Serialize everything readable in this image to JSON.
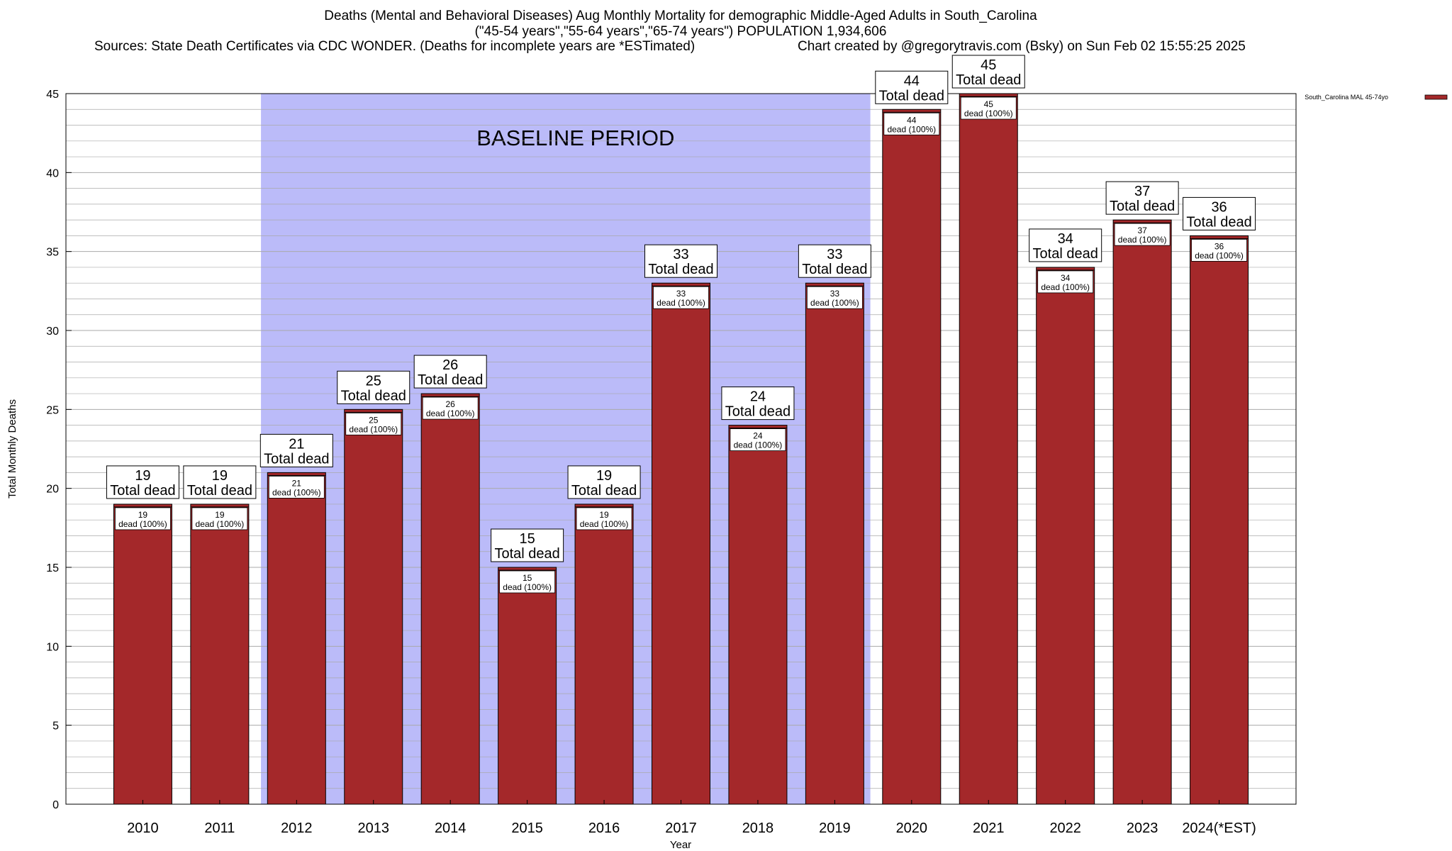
{
  "header": {
    "title_line1": "Deaths (Mental and Behavioral Diseases) Aug Monthly Mortality for demographic Middle-Aged Adults in South_Carolina",
    "title_line2": "(\"45-54 years\",\"55-64 years\",\"65-74 years\") POPULATION 1,934,606",
    "sources": "Sources: State Death Certificates via CDC WONDER. (Deaths for incomplete years are *ESTimated)",
    "credit": "Chart created by @gregorytravis.com (Bsky) on Sun Feb 02 15:55:25 2025"
  },
  "chart_data": {
    "type": "bar",
    "xlabel": "Year",
    "ylabel": "Total Monthly Deaths",
    "ylim": [
      0,
      45
    ],
    "yticks": [
      0,
      5,
      10,
      15,
      20,
      25,
      30,
      35,
      40,
      45
    ],
    "categories": [
      "2010",
      "2011",
      "2012",
      "2013",
      "2014",
      "2015",
      "2016",
      "2017",
      "2018",
      "2019",
      "2020",
      "2021",
      "2022",
      "2023",
      "2024(*EST)"
    ],
    "series": [
      {
        "name": "South_Carolina MAL 45-74yo",
        "values": [
          19,
          19,
          21,
          25,
          26,
          15,
          19,
          33,
          24,
          33,
          44,
          45,
          34,
          37,
          36
        ]
      }
    ],
    "total_label_word": "Total dead",
    "inner_label_word": "dead (100%)",
    "baseline_region": {
      "label": "BASELINE PERIOD",
      "from": "2012",
      "to": "2019"
    },
    "legend_position": "top-right",
    "grid": true,
    "colors": {
      "bar": "#a4282a",
      "baseline": "#bbbbf9",
      "grid": "#aaaaaa"
    }
  }
}
